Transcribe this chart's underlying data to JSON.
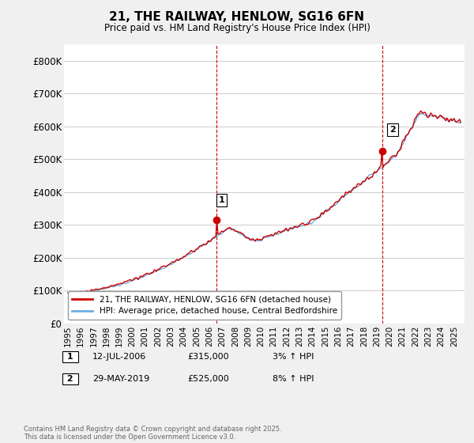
{
  "title": "21, THE RAILWAY, HENLOW, SG16 6FN",
  "subtitle": "Price paid vs. HM Land Registry's House Price Index (HPI)",
  "footnote": "Contains HM Land Registry data © Crown copyright and database right 2025.\nThis data is licensed under the Open Government Licence v3.0.",
  "legend_line1": "21, THE RAILWAY, HENLOW, SG16 6FN (detached house)",
  "legend_line2": "HPI: Average price, detached house, Central Bedfordshire",
  "purchase1_label": "1",
  "purchase1_date": "12-JUL-2006",
  "purchase1_price": "£315,000",
  "purchase1_hpi": "3% ↑ HPI",
  "purchase1_x": 2006.54,
  "purchase1_y": 315000,
  "purchase2_label": "2",
  "purchase2_date": "29-MAY-2019",
  "purchase2_price": "£525,000",
  "purchase2_hpi": "8% ↑ HPI",
  "purchase2_x": 2019.41,
  "purchase2_y": 525000,
  "hpi_color": "#6ab0e0",
  "price_color": "#cc0000",
  "vline_color": "#cc0000",
  "grid_color": "#cccccc",
  "background_color": "#f0f0f0",
  "plot_background": "#ffffff",
  "ylim": [
    0,
    850000
  ],
  "xlim_start": 1994.7,
  "xlim_end": 2025.8,
  "yticks": [
    0,
    100000,
    200000,
    300000,
    400000,
    500000,
    600000,
    700000,
    800000
  ],
  "ytick_labels": [
    "£0",
    "£100K",
    "£200K",
    "£300K",
    "£400K",
    "£500K",
    "£600K",
    "£700K",
    "£800K"
  ],
  "xticks": [
    1995,
    1996,
    1997,
    1998,
    1999,
    2000,
    2001,
    2002,
    2003,
    2004,
    2005,
    2006,
    2007,
    2008,
    2009,
    2010,
    2011,
    2012,
    2013,
    2014,
    2015,
    2016,
    2017,
    2018,
    2019,
    2020,
    2021,
    2022,
    2023,
    2024,
    2025
  ]
}
